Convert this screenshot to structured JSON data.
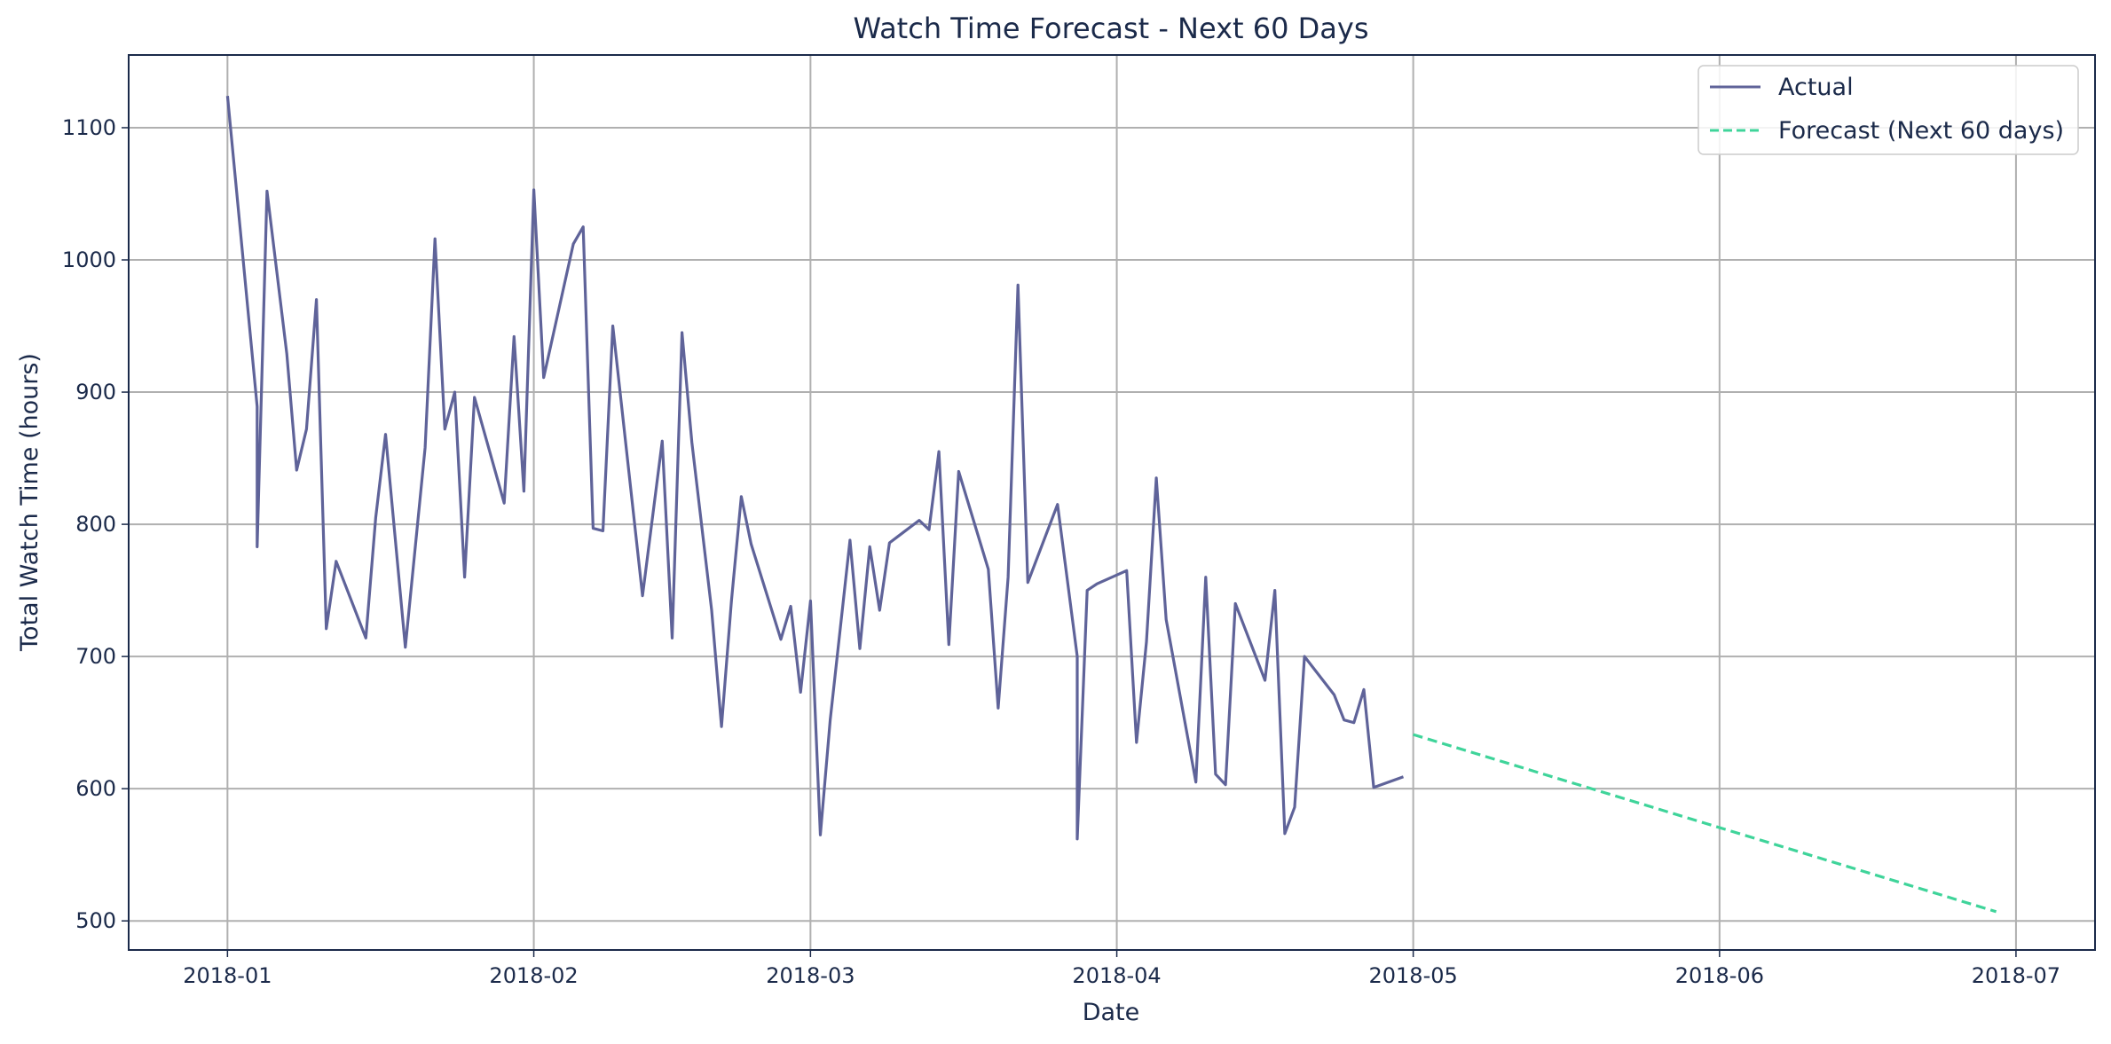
{
  "chart_data": {
    "type": "line",
    "title": "Watch Time Forecast - Next 60 Days",
    "xlabel": "Date",
    "ylabel": "Total Watch Time (hours)",
    "xlim": [
      "2017-12-22",
      "2018-07-09"
    ],
    "ylim": [
      478,
      1155
    ],
    "grid": true,
    "legend_position": "top-right",
    "x_ticks": [
      "2018-01-01",
      "2018-02-01",
      "2018-03-01",
      "2018-04-01",
      "2018-05-01",
      "2018-06-01",
      "2018-07-01"
    ],
    "x_tick_labels": [
      "2018-01",
      "2018-02",
      "2018-03",
      "2018-04",
      "2018-05",
      "2018-06",
      "2018-07"
    ],
    "y_ticks": [
      500,
      600,
      700,
      800,
      900,
      1000,
      1100
    ],
    "y_tick_labels": [
      "500",
      "600",
      "700",
      "800",
      "900",
      "1000",
      "1100"
    ],
    "series": [
      {
        "name": "Actual",
        "color": "#5f6399",
        "dash": "solid",
        "points": [
          [
            "2018-01-01",
            1124
          ],
          [
            "2018-01-04",
            889
          ],
          [
            "2018-01-04",
            783
          ],
          [
            "2018-01-05",
            1052
          ],
          [
            "2018-01-07",
            929
          ],
          [
            "2018-01-08",
            841
          ],
          [
            "2018-01-09",
            872
          ],
          [
            "2018-01-10",
            970
          ],
          [
            "2018-01-11",
            721
          ],
          [
            "2018-01-12",
            772
          ],
          [
            "2018-01-15",
            714
          ],
          [
            "2018-01-16",
            805
          ],
          [
            "2018-01-17",
            868
          ],
          [
            "2018-01-19",
            707
          ],
          [
            "2018-01-21",
            858
          ],
          [
            "2018-01-22",
            1016
          ],
          [
            "2018-01-23",
            872
          ],
          [
            "2018-01-24",
            900
          ],
          [
            "2018-01-25",
            760
          ],
          [
            "2018-01-26",
            896
          ],
          [
            "2018-01-29",
            816
          ],
          [
            "2018-01-30",
            942
          ],
          [
            "2018-01-31",
            825
          ],
          [
            "2018-02-01",
            1053
          ],
          [
            "2018-02-02",
            911
          ],
          [
            "2018-02-05",
            1012
          ],
          [
            "2018-02-06",
            1025
          ],
          [
            "2018-02-07",
            797
          ],
          [
            "2018-02-08",
            795
          ],
          [
            "2018-02-09",
            950
          ],
          [
            "2018-02-12",
            746
          ],
          [
            "2018-02-14",
            863
          ],
          [
            "2018-02-15",
            714
          ],
          [
            "2018-02-16",
            945
          ],
          [
            "2018-02-17",
            862
          ],
          [
            "2018-02-19",
            735
          ],
          [
            "2018-02-20",
            647
          ],
          [
            "2018-02-21",
            742
          ],
          [
            "2018-02-22",
            821
          ],
          [
            "2018-02-23",
            785
          ],
          [
            "2018-02-26",
            713
          ],
          [
            "2018-02-27",
            738
          ],
          [
            "2018-02-28",
            673
          ],
          [
            "2018-03-01",
            742
          ],
          [
            "2018-03-02",
            565
          ],
          [
            "2018-03-03",
            652
          ],
          [
            "2018-03-05",
            788
          ],
          [
            "2018-03-06",
            706
          ],
          [
            "2018-03-07",
            783
          ],
          [
            "2018-03-08",
            735
          ],
          [
            "2018-03-09",
            786
          ],
          [
            "2018-03-12",
            803
          ],
          [
            "2018-03-13",
            796
          ],
          [
            "2018-03-14",
            855
          ],
          [
            "2018-03-15",
            709
          ],
          [
            "2018-03-16",
            840
          ],
          [
            "2018-03-19",
            766
          ],
          [
            "2018-03-20",
            661
          ],
          [
            "2018-03-21",
            760
          ],
          [
            "2018-03-22",
            981
          ],
          [
            "2018-03-23",
            756
          ],
          [
            "2018-03-26",
            815
          ],
          [
            "2018-03-28",
            700
          ],
          [
            "2018-03-28",
            562
          ],
          [
            "2018-03-29",
            750
          ],
          [
            "2018-03-30",
            755
          ],
          [
            "2018-04-02",
            765
          ],
          [
            "2018-04-03",
            635
          ],
          [
            "2018-04-04",
            711
          ],
          [
            "2018-04-05",
            835
          ],
          [
            "2018-04-06",
            728
          ],
          [
            "2018-04-09",
            605
          ],
          [
            "2018-04-10",
            760
          ],
          [
            "2018-04-11",
            611
          ],
          [
            "2018-04-12",
            603
          ],
          [
            "2018-04-13",
            740
          ],
          [
            "2018-04-16",
            682
          ],
          [
            "2018-04-17",
            750
          ],
          [
            "2018-04-18",
            566
          ],
          [
            "2018-04-19",
            586
          ],
          [
            "2018-04-20",
            700
          ],
          [
            "2018-04-23",
            671
          ],
          [
            "2018-04-24",
            652
          ],
          [
            "2018-04-25",
            650
          ],
          [
            "2018-04-26",
            675
          ],
          [
            "2018-04-27",
            601
          ],
          [
            "2018-04-30",
            609
          ]
        ]
      },
      {
        "name": "Forecast (Next 60 days)",
        "color": "#3fd49a",
        "dash": "dashed",
        "points": [
          [
            "2018-05-01",
            641
          ],
          [
            "2018-06-29",
            507
          ]
        ]
      }
    ]
  }
}
